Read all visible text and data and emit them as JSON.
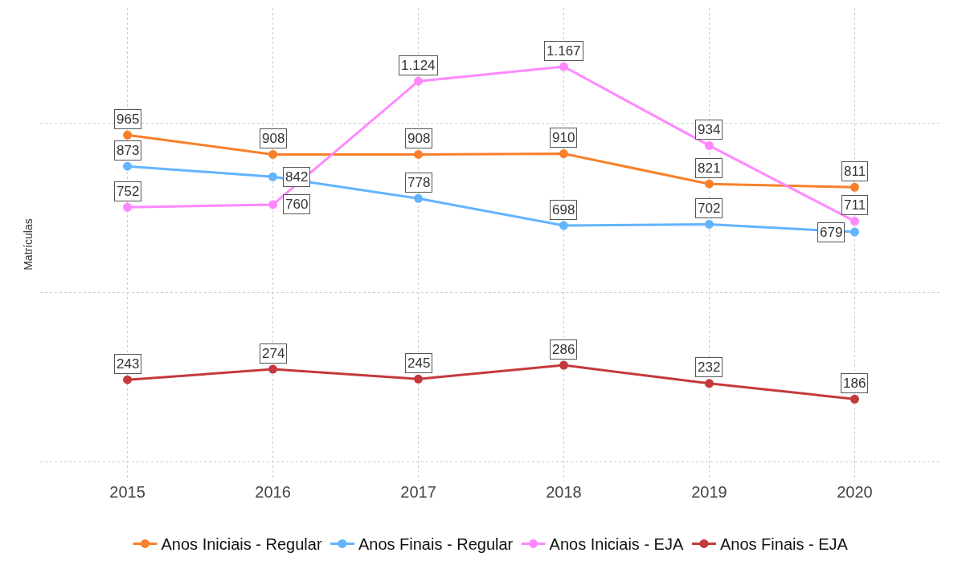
{
  "chart_data": {
    "type": "line",
    "ylabel": "Matrículas",
    "categories": [
      "2015",
      "2016",
      "2017",
      "2018",
      "2019",
      "2020"
    ],
    "ylim": [
      -55,
      1340
    ],
    "yticks": [
      {
        "value": 0,
        "label": null
      },
      {
        "value": 500,
        "label": null
      },
      {
        "value": 1000,
        "label": null
      }
    ],
    "tick_labels": "x",
    "grid": true,
    "legend": "bottom",
    "marker": "circle",
    "line_style": "solid",
    "series": [
      {
        "name": "Anos Iniciais - Regular",
        "color": "#f8802b",
        "values": [
          965,
          908,
          908,
          910,
          821,
          811
        ],
        "value_labels": [
          "965",
          "908",
          "908",
          "910",
          "821",
          "811"
        ]
      },
      {
        "name": "Anos Finais - Regular",
        "color": "#62b4ff",
        "values": [
          873,
          842,
          778,
          698,
          702,
          679
        ],
        "value_labels": [
          "873",
          "842",
          "778",
          "698",
          "702",
          "679"
        ]
      },
      {
        "name": "Anos Iniciais - EJA",
        "color": "#ff88ff",
        "values": [
          752,
          760,
          1124,
          1167,
          934,
          711
        ],
        "value_labels": [
          "752",
          "760",
          "1.124",
          "1.167",
          "934",
          "711"
        ]
      },
      {
        "name": "Anos Finais - EJA",
        "color": "#c4393c",
        "values": [
          243,
          274,
          245,
          286,
          232,
          186
        ],
        "value_labels": [
          "243",
          "274",
          "245",
          "286",
          "232",
          "186"
        ]
      }
    ]
  }
}
